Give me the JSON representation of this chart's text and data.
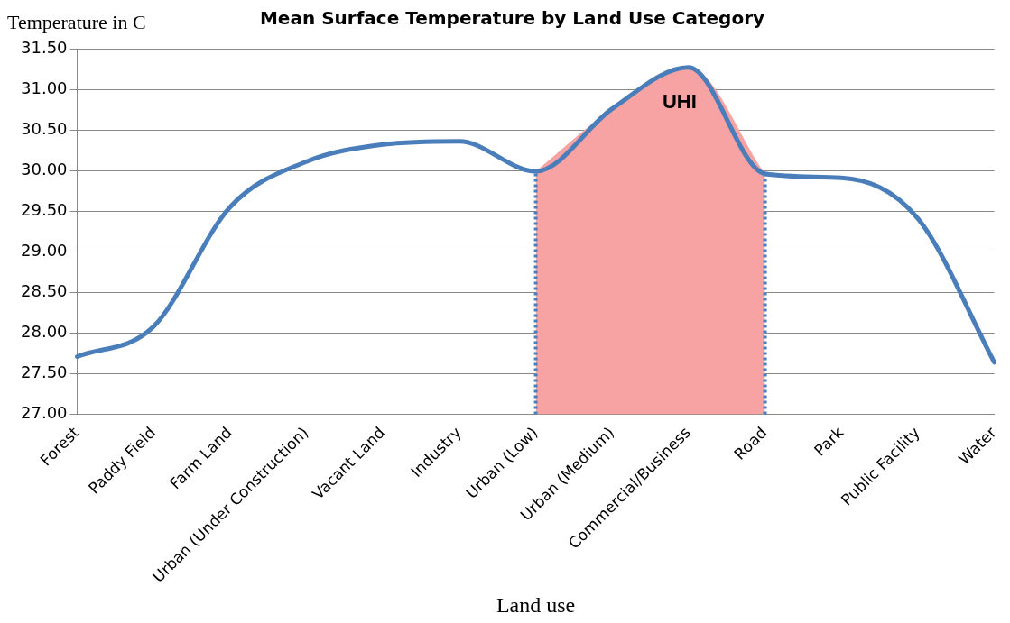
{
  "chart_data": {
    "type": "line",
    "title": "Mean Surface Temperature by Land Use Category",
    "xlabel": "Land use",
    "ylabel": "Temperature in C",
    "categories": [
      "Forest",
      "Paddy Field",
      "Farm Land",
      "Urban (Under Construction)",
      "Vacant Land",
      "Industry",
      "Urban (Low)",
      "Urban (Medium)",
      "Commercial/Business",
      "Road",
      "Park",
      "Public Facility",
      "Water"
    ],
    "series": [
      {
        "type": "area",
        "color": "#f7a3a3",
        "values": [
          null,
          null,
          null,
          null,
          null,
          null,
          29.99,
          30.76,
          31.27,
          29.96,
          null,
          null,
          null
        ]
      },
      {
        "color": "#4a7ebb",
        "values": [
          27.71,
          28.08,
          29.55,
          30.11,
          30.32,
          30.36,
          29.99,
          30.76,
          31.27,
          29.96,
          29.91,
          29.41,
          27.64
        ]
      }
    ],
    "ylim": [
      27,
      31.5
    ],
    "yticks": [
      {
        "value": 27,
        "label": "27.00"
      },
      {
        "value": 27.5,
        "label": "27.50"
      },
      {
        "value": 28,
        "label": "28.00"
      },
      {
        "value": 28.5,
        "label": "28.50"
      },
      {
        "value": 29,
        "label": "29.00"
      },
      {
        "value": 29.5,
        "label": "29.50"
      },
      {
        "value": 30,
        "label": "30.00"
      },
      {
        "value": 30.5,
        "label": "30.50"
      },
      {
        "value": 31,
        "label": "31.00"
      },
      {
        "value": 31.5,
        "label": "31.50"
      }
    ],
    "ref_lines": [
      {
        "axis": "x",
        "value": "Urban (Low)",
        "color": "#4a7ebb",
        "line_style": "dotted"
      },
      {
        "axis": "x",
        "value": "Road",
        "color": "#4a7ebb",
        "line_style": "dotted"
      }
    ],
    "annotations": [
      "UHI"
    ],
    "grid": "y",
    "legend": false,
    "marker": "none",
    "line_style": "solid"
  }
}
